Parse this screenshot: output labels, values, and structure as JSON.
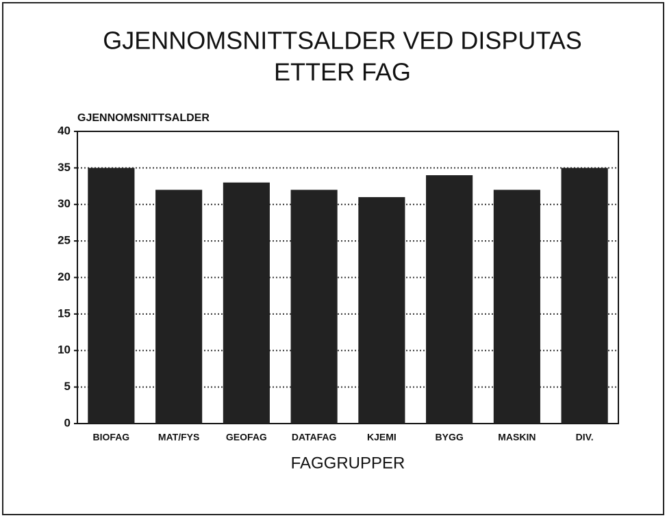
{
  "chart_data": {
    "type": "bar",
    "title": [
      "GJENNOMSNITTSALDER VED DISPUTAS",
      "ETTER FAG"
    ],
    "y_label": "GJENNOMSNITTSALDER",
    "x_label": "FAGGRUPPER",
    "categories": [
      "BIOFAG",
      "MAT/FYS",
      "GEOFAG",
      "DATAFAG",
      "KJEMI",
      "BYGG",
      "MASKIN",
      "DIV."
    ],
    "values": [
      35,
      32,
      33,
      32,
      31,
      34,
      32,
      35
    ],
    "color": "#222222",
    "ylim": [
      0,
      40
    ],
    "yticks": [
      0,
      5,
      10,
      15,
      20,
      25,
      30,
      35,
      40
    ],
    "grid": true
  }
}
